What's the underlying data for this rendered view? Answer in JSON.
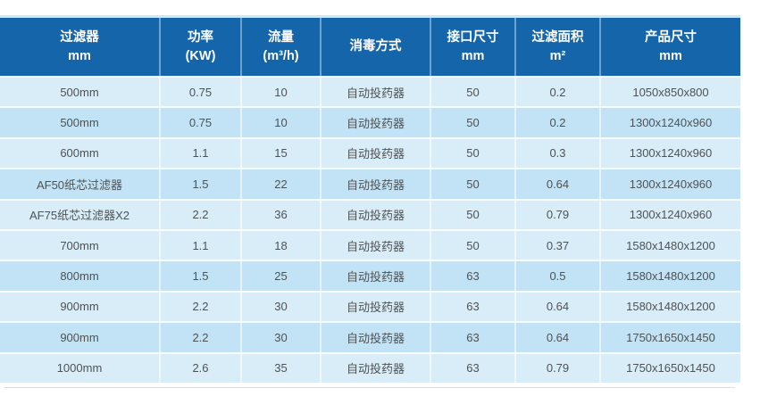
{
  "colors": {
    "header_background": "#1565ab",
    "header_text": "#ffffff",
    "row_light": "#d9edf9",
    "row_shaded": "#c2e3f5",
    "body_text": "#4f5254",
    "top_border": "#cde8f7"
  },
  "table": {
    "columns": [
      {
        "line1": "过滤器",
        "line2": "mm"
      },
      {
        "line1": "功率",
        "line2": "(KW)"
      },
      {
        "line1": "流量",
        "line2": "(m³/h)"
      },
      {
        "line1": "消毒方式",
        "line2": ""
      },
      {
        "line1": "接口尺寸",
        "line2": "mm"
      },
      {
        "line1": "过滤面积",
        "line2": "m²"
      },
      {
        "line1": "产品尺寸",
        "line2": "mm"
      }
    ],
    "rows": [
      [
        "500mm",
        "0.75",
        "10",
        "自动投药器",
        "50",
        "0.2",
        "1050x850x800"
      ],
      [
        "500mm",
        "0.75",
        "10",
        "自动投药器",
        "50",
        "0.2",
        "1300x1240x960"
      ],
      [
        "600mm",
        "1.1",
        "15",
        "自动投药器",
        "50",
        "0.3",
        "1300x1240x960"
      ],
      [
        "AF50纸芯过滤器",
        "1.5",
        "22",
        "自动投药器",
        "50",
        "0.64",
        "1300x1240x960"
      ],
      [
        "AF75纸芯过滤器X2",
        "2.2",
        "36",
        "自动投药器",
        "50",
        "0.79",
        "1300x1240x960"
      ],
      [
        "700mm",
        "1.1",
        "18",
        "自动投药器",
        "50",
        "0.37",
        "1580x1480x1200"
      ],
      [
        "800mm",
        "1.5",
        "25",
        "自动投药器",
        "63",
        "0.5",
        "1580x1480x1200"
      ],
      [
        "900mm",
        "2.2",
        "30",
        "自动投药器",
        "63",
        "0.64",
        "1580x1480x1200"
      ],
      [
        "900mm",
        "2.2",
        "30",
        "自动投药器",
        "63",
        "0.64",
        "1750x1650x1450"
      ],
      [
        "1000mm",
        "2.6",
        "35",
        "自动投药器",
        "63",
        "0.79",
        "1750x1650x1450"
      ]
    ],
    "shaded_row_indices": [
      1,
      3,
      6,
      8
    ]
  }
}
